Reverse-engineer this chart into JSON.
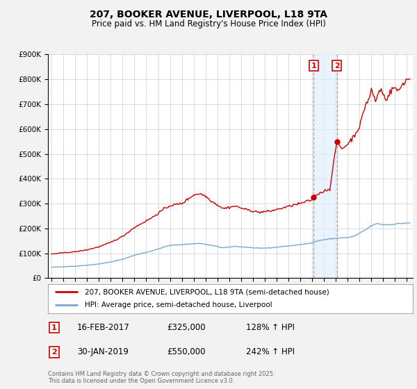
{
  "title": "207, BOOKER AVENUE, LIVERPOOL, L18 9TA",
  "subtitle": "Price paid vs. HM Land Registry's House Price Index (HPI)",
  "footnote": "Contains HM Land Registry data © Crown copyright and database right 2025.\nThis data is licensed under the Open Government Licence v3.0.",
  "legend1": "207, BOOKER AVENUE, LIVERPOOL, L18 9TA (semi-detached house)",
  "legend2": "HPI: Average price, semi-detached house, Liverpool",
  "marker1_date": "16-FEB-2017",
  "marker1_price": 325000,
  "marker1_label": "128% ↑ HPI",
  "marker2_date": "30-JAN-2019",
  "marker2_price": 550000,
  "marker2_label": "242% ↑ HPI",
  "marker1_x": 2017.125,
  "marker2_x": 2019.083,
  "ylim": [
    0,
    900000
  ],
  "xlim_left": 1994.7,
  "xlim_right": 2025.5,
  "background_color": "#f2f2f2",
  "plot_bg_color": "#ffffff",
  "red_line_color": "#cc0000",
  "blue_line_color": "#7aa8cc",
  "shade_color": "#ddeeff",
  "marker_box_color": "#cc0000",
  "dashed_color": "#dd8888"
}
